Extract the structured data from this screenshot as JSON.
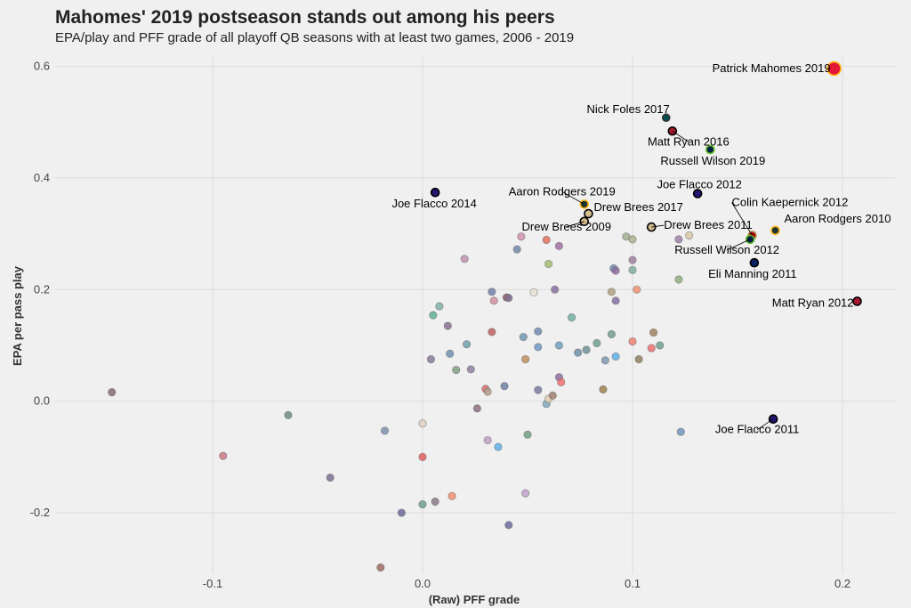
{
  "chart_data": {
    "type": "scatter",
    "title": "Mahomes' 2019 postseason stands out among his peers",
    "subtitle": "EPA/play and PFF grade of all playoff QB seasons with at least two games, 2006 - 2019",
    "xlabel": "(Raw) PFF grade",
    "ylabel": "EPA per pass play",
    "xlim": [
      -0.175,
      0.225
    ],
    "ylim": [
      -0.31,
      0.62
    ],
    "x_ticks": [
      -0.1,
      0.0,
      0.1,
      0.2
    ],
    "x_tick_labels": [
      "-0.1",
      "0.0",
      "0.1",
      "0.2"
    ],
    "y_ticks": [
      -0.2,
      0.0,
      0.2,
      0.4,
      0.6
    ],
    "y_tick_labels": [
      "-0.2",
      "0.0",
      "0.2",
      "0.4",
      "0.6"
    ],
    "grid": true,
    "labeled_points": [
      {
        "label": "Patrick Mahomes 2019",
        "x": 0.196,
        "y": 0.596,
        "color": "#e31837",
        "edge": "#ffb612",
        "size": 7.5,
        "label_dx": -4,
        "label_dy": 4,
        "anchor": "end"
      },
      {
        "label": "Nick Foles 2017",
        "x": 0.116,
        "y": 0.508,
        "color": "#004c54",
        "edge": "#333333",
        "size": 4,
        "label_dx": 4,
        "label_dy": -5,
        "anchor": "end"
      },
      {
        "label": "Matt Ryan 2016",
        "x": 0.119,
        "y": 0.484,
        "color": "#a71930",
        "edge": "#000000",
        "size": 4.5,
        "label_dx": 18,
        "label_dy": 16,
        "anchor": "middle"
      },
      {
        "label": "Russell Wilson 2019",
        "x": 0.137,
        "y": 0.451,
        "color": "#002244",
        "edge": "#69be28",
        "size": 4.5,
        "label_dx": 3,
        "label_dy": 17,
        "anchor": "middle"
      },
      {
        "label": "Joe Flacco 2012",
        "x": 0.131,
        "y": 0.372,
        "color": "#241773",
        "edge": "#000000",
        "size": 4.5,
        "label_dx": 2,
        "label_dy": -6,
        "anchor": "middle"
      },
      {
        "label": "Joe Flacco 2014",
        "x": 0.006,
        "y": 0.374,
        "color": "#241773",
        "edge": "#000000",
        "size": 4.5,
        "label_dx": -1,
        "label_dy": 17,
        "anchor": "middle"
      },
      {
        "label": "Aaron Rodgers 2019",
        "x": 0.077,
        "y": 0.353,
        "color": "#203731",
        "edge": "#ffb612",
        "size": 4.5,
        "label_dx": -25,
        "label_dy": -10,
        "anchor": "middle"
      },
      {
        "label": "Colin Kaepernick 2012",
        "x": 0.157,
        "y": 0.297,
        "color": "#aa0000",
        "edge": "#b3995d",
        "size": 4.5,
        "label_dx": -23,
        "label_dy": -33,
        "anchor": "start"
      },
      {
        "label": "Drew Brees 2017",
        "x": 0.079,
        "y": 0.336,
        "color": "#d3bc8d",
        "edge": "#000000",
        "size": 4.5,
        "label_dx": 6,
        "label_dy": -3,
        "anchor": "start"
      },
      {
        "label": "Drew Brees 2011",
        "x": 0.109,
        "y": 0.312,
        "color": "#d3bc8d",
        "edge": "#000000",
        "size": 4.5,
        "label_dx": 14,
        "label_dy": 2,
        "anchor": "start"
      },
      {
        "label": "Drew Brees 2009",
        "x": 0.077,
        "y": 0.322,
        "color": "#d3bc8d",
        "edge": "#000000",
        "size": 4.5,
        "label_dx": -20,
        "label_dy": 10,
        "anchor": "middle"
      },
      {
        "label": "Aaron Rodgers 2010",
        "x": 0.168,
        "y": 0.306,
        "color": "#203731",
        "edge": "#ffb612",
        "size": 4.5,
        "label_dx": 10,
        "label_dy": -9,
        "anchor": "start"
      },
      {
        "label": "Russell Wilson 2012",
        "x": 0.156,
        "y": 0.29,
        "color": "#002244",
        "edge": "#69be28",
        "size": 4.5,
        "label_dx": -26,
        "label_dy": 16,
        "anchor": "middle"
      },
      {
        "label": "Eli Manning 2011",
        "x": 0.158,
        "y": 0.248,
        "color": "#0b2265",
        "edge": "#000000",
        "size": 4.5,
        "label_dx": -2,
        "label_dy": 17,
        "anchor": "middle"
      },
      {
        "label": "Matt Ryan 2012",
        "x": 0.207,
        "y": 0.179,
        "color": "#a71930",
        "edge": "#000000",
        "size": 4.5,
        "label_dx": -4,
        "label_dy": 6,
        "anchor": "end"
      },
      {
        "label": "Joe Flacco 2011",
        "x": 0.167,
        "y": -0.032,
        "color": "#241773",
        "edge": "#000000",
        "size": 4.5,
        "label_dx": -18,
        "label_dy": 16,
        "anchor": "middle"
      }
    ],
    "points": [
      {
        "x": -0.148,
        "y": 0.016,
        "color": "#8a6a6a"
      },
      {
        "x": -0.095,
        "y": -0.098,
        "color": "#c97a86"
      },
      {
        "x": -0.064,
        "y": -0.025,
        "color": "#6c8c80"
      },
      {
        "x": -0.044,
        "y": -0.137,
        "color": "#7a7090"
      },
      {
        "x": -0.018,
        "y": -0.053,
        "color": "#7f90ae"
      },
      {
        "x": -0.02,
        "y": -0.298,
        "color": "#9c6a60"
      },
      {
        "x": -0.01,
        "y": -0.2,
        "color": "#6a6a9a"
      },
      {
        "x": 0.0,
        "y": -0.04,
        "color": "#e0d0c0"
      },
      {
        "x": 0.0,
        "y": -0.1,
        "color": "#e06060"
      },
      {
        "x": 0.0,
        "y": -0.185,
        "color": "#70a090"
      },
      {
        "x": 0.004,
        "y": 0.075,
        "color": "#8a7a9a"
      },
      {
        "x": 0.005,
        "y": 0.154,
        "color": "#60b098"
      },
      {
        "x": 0.008,
        "y": 0.17,
        "color": "#80b0a8"
      },
      {
        "x": 0.006,
        "y": -0.18,
        "color": "#8a7a8a"
      },
      {
        "x": 0.012,
        "y": 0.135,
        "color": "#8a7090"
      },
      {
        "x": 0.014,
        "y": -0.17,
        "color": "#f09070"
      },
      {
        "x": 0.013,
        "y": 0.085,
        "color": "#7090b0"
      },
      {
        "x": 0.016,
        "y": 0.056,
        "color": "#80a080"
      },
      {
        "x": 0.02,
        "y": 0.255,
        "color": "#c090b0"
      },
      {
        "x": 0.021,
        "y": 0.102,
        "color": "#70a0a8"
      },
      {
        "x": 0.023,
        "y": 0.057,
        "color": "#9080a0"
      },
      {
        "x": 0.026,
        "y": -0.013,
        "color": "#8a7080"
      },
      {
        "x": 0.03,
        "y": 0.022,
        "color": "#e07070"
      },
      {
        "x": 0.031,
        "y": 0.017,
        "color": "#b0a090"
      },
      {
        "x": 0.031,
        "y": -0.07,
        "color": "#c0a0c0"
      },
      {
        "x": 0.033,
        "y": 0.196,
        "color": "#7080a8"
      },
      {
        "x": 0.033,
        "y": 0.124,
        "color": "#c06060"
      },
      {
        "x": 0.034,
        "y": 0.18,
        "color": "#d090a0"
      },
      {
        "x": 0.036,
        "y": -0.082,
        "color": "#60b0e8"
      },
      {
        "x": 0.039,
        "y": 0.027,
        "color": "#7080a8"
      },
      {
        "x": 0.04,
        "y": 0.186,
        "color": "#906060"
      },
      {
        "x": 0.041,
        "y": 0.185,
        "color": "#807090"
      },
      {
        "x": 0.041,
        "y": -0.222,
        "color": "#6a6a9a"
      },
      {
        "x": 0.045,
        "y": 0.272,
        "color": "#7088a8"
      },
      {
        "x": 0.047,
        "y": 0.295,
        "color": "#d090b0"
      },
      {
        "x": 0.048,
        "y": 0.115,
        "color": "#7098b0"
      },
      {
        "x": 0.049,
        "y": 0.075,
        "color": "#c09060"
      },
      {
        "x": 0.049,
        "y": -0.165,
        "color": "#c0a0c8"
      },
      {
        "x": 0.05,
        "y": -0.06,
        "color": "#70a080"
      },
      {
        "x": 0.053,
        "y": 0.195,
        "color": "#e8e0d0"
      },
      {
        "x": 0.055,
        "y": 0.125,
        "color": "#7088b0"
      },
      {
        "x": 0.055,
        "y": 0.097,
        "color": "#7098c0"
      },
      {
        "x": 0.055,
        "y": 0.02,
        "color": "#7a7aa0"
      },
      {
        "x": 0.059,
        "y": 0.289,
        "color": "#e07060"
      },
      {
        "x": 0.059,
        "y": -0.005,
        "color": "#80a8c0"
      },
      {
        "x": 0.06,
        "y": 0.246,
        "color": "#a0c070"
      },
      {
        "x": 0.06,
        "y": 0.004,
        "color": "#e0d0b0"
      },
      {
        "x": 0.062,
        "y": 0.01,
        "color": "#a08070"
      },
      {
        "x": 0.063,
        "y": 0.2,
        "color": "#8a70a0"
      },
      {
        "x": 0.065,
        "y": 0.278,
        "color": "#a070a0"
      },
      {
        "x": 0.065,
        "y": 0.1,
        "color": "#70a0c0"
      },
      {
        "x": 0.065,
        "y": 0.043,
        "color": "#9070a0"
      },
      {
        "x": 0.066,
        "y": 0.034,
        "color": "#f07070"
      },
      {
        "x": 0.071,
        "y": 0.15,
        "color": "#70b0a0"
      },
      {
        "x": 0.074,
        "y": 0.087,
        "color": "#7090a8"
      },
      {
        "x": 0.078,
        "y": 0.092,
        "color": "#70909a"
      },
      {
        "x": 0.083,
        "y": 0.104,
        "color": "#70a090"
      },
      {
        "x": 0.087,
        "y": 0.073,
        "color": "#8098b0"
      },
      {
        "x": 0.086,
        "y": 0.021,
        "color": "#a08050"
      },
      {
        "x": 0.09,
        "y": 0.196,
        "color": "#b0a080"
      },
      {
        "x": 0.09,
        "y": 0.12,
        "color": "#70a090"
      },
      {
        "x": 0.091,
        "y": 0.238,
        "color": "#7088b0"
      },
      {
        "x": 0.092,
        "y": 0.234,
        "color": "#9070a0"
      },
      {
        "x": 0.092,
        "y": 0.18,
        "color": "#8a70a0"
      },
      {
        "x": 0.092,
        "y": 0.08,
        "color": "#60b0e8"
      },
      {
        "x": 0.097,
        "y": 0.295,
        "color": "#a0b090"
      },
      {
        "x": 0.1,
        "y": 0.29,
        "color": "#b0b090"
      },
      {
        "x": 0.1,
        "y": 0.253,
        "color": "#a080a0"
      },
      {
        "x": 0.1,
        "y": 0.235,
        "color": "#80b0a0"
      },
      {
        "x": 0.1,
        "y": 0.107,
        "color": "#f08070"
      },
      {
        "x": 0.102,
        "y": 0.2,
        "color": "#f09070"
      },
      {
        "x": 0.103,
        "y": 0.075,
        "color": "#908060"
      },
      {
        "x": 0.109,
        "y": 0.095,
        "color": "#f07070"
      },
      {
        "x": 0.11,
        "y": 0.123,
        "color": "#a08060"
      },
      {
        "x": 0.113,
        "y": 0.1,
        "color": "#70a090"
      },
      {
        "x": 0.122,
        "y": 0.218,
        "color": "#90b080"
      },
      {
        "x": 0.122,
        "y": 0.29,
        "color": "#a080a8"
      },
      {
        "x": 0.123,
        "y": -0.055,
        "color": "#7098c0"
      },
      {
        "x": 0.127,
        "y": 0.297,
        "color": "#d8c8a8"
      }
    ]
  }
}
